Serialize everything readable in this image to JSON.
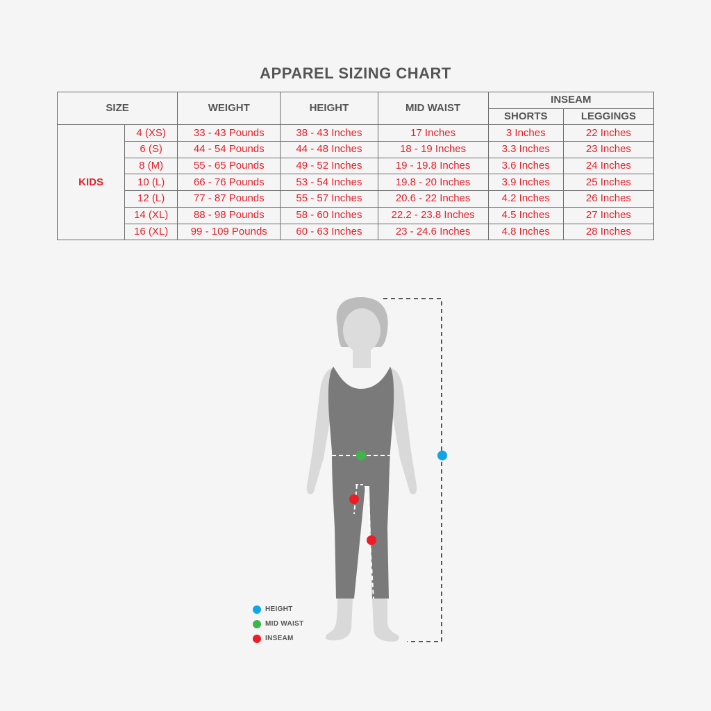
{
  "title": "APPAREL SIZING CHART",
  "headers": {
    "size": "SIZE",
    "weight": "WEIGHT",
    "height": "HEIGHT",
    "mid_waist": "MID WAIST",
    "inseam": "INSEAM",
    "shorts": "SHORTS",
    "leggings": "LEGGINGS"
  },
  "group_label": "KIDS",
  "rows": [
    {
      "size": "4 (XS)",
      "weight": "33 - 43 Pounds",
      "height": "38 - 43 Inches",
      "waist": "17 Inches",
      "shorts": "3 Inches",
      "leggings": "22 Inches"
    },
    {
      "size": "6 (S)",
      "weight": "44 - 54 Pounds",
      "height": "44 - 48 Inches",
      "waist": "18 - 19 Inches",
      "shorts": "3.3 Inches",
      "leggings": "23 Inches"
    },
    {
      "size": "8 (M)",
      "weight": "55 - 65 Pounds",
      "height": "49 - 52 Inches",
      "waist": "19 - 19.8 Inches",
      "shorts": "3.6 Inches",
      "leggings": "24 Inches"
    },
    {
      "size": "10 (L)",
      "weight": "66 - 76 Pounds",
      "height": "53 - 54 Inches",
      "waist": "19.8 - 20 Inches",
      "shorts": "3.9 Inches",
      "leggings": "25 Inches"
    },
    {
      "size": "12 (L)",
      "weight": "77 - 87 Pounds",
      "height": "55 - 57 Inches",
      "waist": "20.6 - 22 Inches",
      "shorts": "4.2 Inches",
      "leggings": "26 Inches"
    },
    {
      "size": "14 (XL)",
      "weight": "88 - 98 Pounds",
      "height": "58 - 60 Inches",
      "waist": "22.2 - 23.8 Inches",
      "shorts": "4.5 Inches",
      "leggings": "27 Inches"
    },
    {
      "size": "16 (XL)",
      "weight": "99 - 109 Pounds",
      "height": "60 - 63 Inches",
      "waist": "23 - 24.6 Inches",
      "shorts": "4.8 Inches",
      "leggings": "28 Inches"
    }
  ],
  "legend": [
    {
      "label": "HEIGHT",
      "color": "#0ea5e9"
    },
    {
      "label": "MID WAIST",
      "color": "#3db54a"
    },
    {
      "label": "INSEAM",
      "color": "#ee1c25"
    }
  ],
  "colors": {
    "height": "#0ea5e9",
    "mid_waist": "#3db54a",
    "inseam": "#ee1c25",
    "value_text": "#e4222c"
  }
}
